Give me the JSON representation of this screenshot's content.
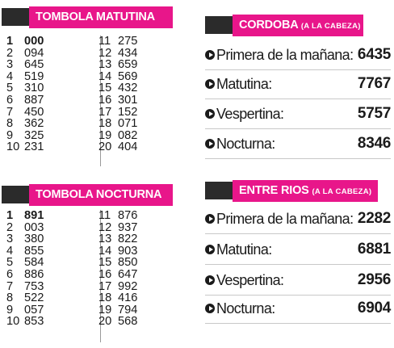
{
  "tombola_matutina": {
    "title": "TOMBOLA MATUTINA",
    "left": [
      {
        "pos": "1",
        "num": "000"
      },
      {
        "pos": "2",
        "num": "094"
      },
      {
        "pos": "3",
        "num": "645"
      },
      {
        "pos": "4",
        "num": "519"
      },
      {
        "pos": "5",
        "num": "310"
      },
      {
        "pos": "6",
        "num": "887"
      },
      {
        "pos": "7",
        "num": "450"
      },
      {
        "pos": "8",
        "num": "362"
      },
      {
        "pos": "9",
        "num": "325"
      },
      {
        "pos": "10",
        "num": "231"
      }
    ],
    "right": [
      {
        "pos": "11",
        "num": "275"
      },
      {
        "pos": "12",
        "num": "434"
      },
      {
        "pos": "13",
        "num": "659"
      },
      {
        "pos": "14",
        "num": "569"
      },
      {
        "pos": "15",
        "num": "432"
      },
      {
        "pos": "16",
        "num": "301"
      },
      {
        "pos": "17",
        "num": "152"
      },
      {
        "pos": "18",
        "num": "071"
      },
      {
        "pos": "19",
        "num": "082"
      },
      {
        "pos": "20",
        "num": "404"
      }
    ]
  },
  "tombola_nocturna": {
    "title": "TOMBOLA NOCTURNA",
    "left": [
      {
        "pos": "1",
        "num": "891"
      },
      {
        "pos": "2",
        "num": "003"
      },
      {
        "pos": "3",
        "num": "380"
      },
      {
        "pos": "4",
        "num": "855"
      },
      {
        "pos": "5",
        "num": "584"
      },
      {
        "pos": "6",
        "num": "886"
      },
      {
        "pos": "7",
        "num": "753"
      },
      {
        "pos": "8",
        "num": "522"
      },
      {
        "pos": "9",
        "num": "057"
      },
      {
        "pos": "10",
        "num": "853"
      }
    ],
    "right": [
      {
        "pos": "11",
        "num": "876"
      },
      {
        "pos": "12",
        "num": "937"
      },
      {
        "pos": "13",
        "num": "822"
      },
      {
        "pos": "14",
        "num": "903"
      },
      {
        "pos": "15",
        "num": "850"
      },
      {
        "pos": "16",
        "num": "647"
      },
      {
        "pos": "17",
        "num": "992"
      },
      {
        "pos": "18",
        "num": "416"
      },
      {
        "pos": "19",
        "num": "794"
      },
      {
        "pos": "20",
        "num": "568"
      }
    ]
  },
  "cordoba": {
    "title": "CORDOBA",
    "subtitle": "(A LA CABEZA)",
    "draws": [
      {
        "label": "Primera de la mañana:",
        "value": "6435"
      },
      {
        "label": "Matutina:",
        "value": "7767"
      },
      {
        "label": "Vespertina:",
        "value": "5757"
      },
      {
        "label": "Nocturna:",
        "value": "8346"
      }
    ]
  },
  "entre_rios": {
    "title": "ENTRE RIOS",
    "subtitle": "(A LA CABEZA)",
    "draws": [
      {
        "label": "Primera de la mañana:",
        "value": "2282"
      },
      {
        "label": "Matutina:",
        "value": "6881"
      },
      {
        "label": "Vespertina:",
        "value": "2956"
      },
      {
        "label": "Nocturna:",
        "value": "6904"
      }
    ]
  },
  "colors": {
    "accent": "#e8168a",
    "dark_bar": "#2b2b2b",
    "text": "#1a1a1a",
    "background": "#ffffff"
  },
  "icons": {
    "draw_bullet": "play-circle-icon"
  }
}
